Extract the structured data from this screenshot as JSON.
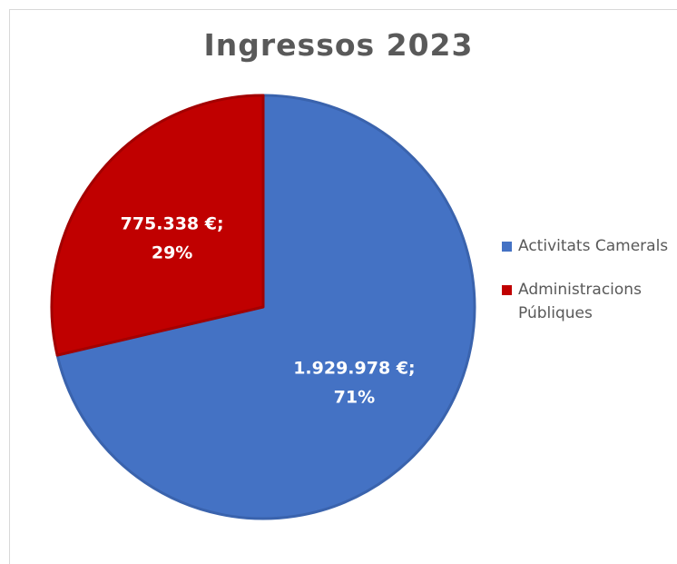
{
  "chart_data": {
    "type": "pie",
    "title": "Ingressos 2023",
    "slices": [
      {
        "name": "Activitats Camerals",
        "value": 1929978,
        "value_label": "1.929.978 €;",
        "percent_label": "71%",
        "color": "#4472c4",
        "edge_color": "#3a63ad"
      },
      {
        "name": "Administracions Públiques",
        "value": 775338,
        "value_label": "775.338 €;",
        "percent_label": "29%",
        "color": "#c00000",
        "edge_color": "#a30000"
      }
    ],
    "start_angle_deg": 0,
    "direction": "clockwise",
    "legend_position": "right"
  }
}
